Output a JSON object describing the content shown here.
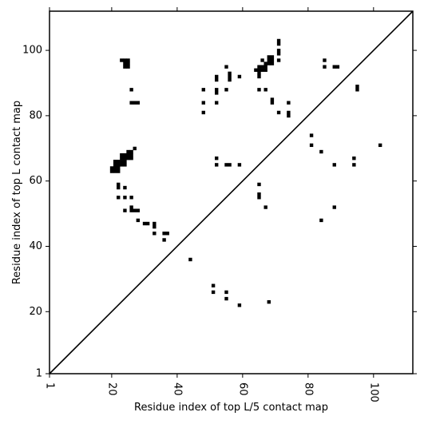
{
  "chart_data": {
    "type": "scatter",
    "title": "",
    "xlabel": "Residue index of top L/5 contact map",
    "ylabel": "Residue index of top L contact map",
    "xlim": [
      1,
      112
    ],
    "ylim": [
      1,
      112
    ],
    "xticks": [
      1,
      20,
      40,
      60,
      80,
      100
    ],
    "yticks": [
      1,
      20,
      40,
      60,
      80,
      100
    ],
    "xtick_labels": [
      "1",
      "20",
      "40",
      "60",
      "80",
      "100"
    ],
    "ytick_labels": [
      "1",
      "20",
      "40",
      "60",
      "80",
      "100"
    ],
    "grid": false,
    "diagonal": [
      [
        1,
        1
      ],
      [
        112,
        112
      ]
    ],
    "marker_color": "#000000",
    "upper_triangle_points": [
      [
        20,
        63
      ],
      [
        21,
        63
      ],
      [
        22,
        63
      ],
      [
        20,
        64
      ],
      [
        21,
        64
      ],
      [
        22,
        64
      ],
      [
        21,
        65
      ],
      [
        22,
        65
      ],
      [
        23,
        65
      ],
      [
        24,
        65
      ],
      [
        21,
        66
      ],
      [
        22,
        66
      ],
      [
        23,
        66
      ],
      [
        24,
        66
      ],
      [
        23,
        67
      ],
      [
        24,
        67
      ],
      [
        25,
        67
      ],
      [
        26,
        67
      ],
      [
        23,
        68
      ],
      [
        24,
        68
      ],
      [
        25,
        68
      ],
      [
        26,
        68
      ],
      [
        25,
        69
      ],
      [
        26,
        69
      ],
      [
        27,
        70
      ],
      [
        22,
        58
      ],
      [
        22,
        59
      ],
      [
        24,
        58
      ],
      [
        22,
        55
      ],
      [
        24,
        55
      ],
      [
        26,
        55
      ],
      [
        24,
        51
      ],
      [
        26,
        52
      ],
      [
        26,
        51
      ],
      [
        27,
        51
      ],
      [
        28,
        51
      ],
      [
        28,
        48
      ],
      [
        30,
        47
      ],
      [
        31,
        47
      ],
      [
        33,
        47
      ],
      [
        33,
        46
      ],
      [
        33,
        44
      ],
      [
        36,
        44
      ],
      [
        37,
        44
      ],
      [
        36,
        42
      ],
      [
        44,
        36
      ],
      [
        23,
        97
      ],
      [
        24,
        97
      ],
      [
        25,
        97
      ],
      [
        24,
        96
      ],
      [
        25,
        96
      ],
      [
        24,
        95
      ],
      [
        25,
        95
      ],
      [
        26,
        88
      ],
      [
        26,
        84
      ],
      [
        27,
        84
      ],
      [
        28,
        84
      ],
      [
        48,
        88
      ],
      [
        48,
        84
      ],
      [
        48,
        81
      ],
      [
        52,
        92
      ],
      [
        52,
        91
      ],
      [
        52,
        88
      ],
      [
        52,
        87
      ],
      [
        52,
        84
      ],
      [
        55,
        95
      ],
      [
        55,
        88
      ],
      [
        56,
        93
      ],
      [
        56,
        92
      ],
      [
        56,
        91
      ],
      [
        59,
        92
      ],
      [
        64,
        94
      ],
      [
        65,
        94
      ],
      [
        65,
        93
      ],
      [
        65,
        92
      ],
      [
        65,
        95
      ],
      [
        66,
        95
      ],
      [
        66,
        94
      ],
      [
        67,
        94
      ],
      [
        67,
        95
      ],
      [
        67,
        96
      ],
      [
        66,
        97
      ],
      [
        68,
        96
      ],
      [
        69,
        96
      ],
      [
        68,
        97
      ],
      [
        69,
        97
      ],
      [
        68,
        98
      ],
      [
        69,
        98
      ],
      [
        71,
        97
      ],
      [
        71,
        99
      ],
      [
        71,
        100
      ],
      [
        71,
        102
      ],
      [
        71,
        103
      ],
      [
        65,
        88
      ],
      [
        67,
        88
      ],
      [
        69,
        85
      ],
      [
        69,
        84
      ],
      [
        71,
        81
      ],
      [
        74,
        84
      ],
      [
        74,
        81
      ],
      [
        74,
        80
      ],
      [
        85,
        97
      ],
      [
        85,
        95
      ],
      [
        88,
        95
      ],
      [
        89,
        95
      ],
      [
        95,
        89
      ],
      [
        95,
        88
      ]
    ],
    "lower_triangle_points": [
      [
        52,
        67
      ],
      [
        52,
        65
      ],
      [
        55,
        65
      ],
      [
        56,
        65
      ],
      [
        59,
        65
      ],
      [
        65,
        59
      ],
      [
        65,
        56
      ],
      [
        65,
        55
      ],
      [
        67,
        52
      ],
      [
        81,
        74
      ],
      [
        81,
        71
      ],
      [
        84,
        69
      ],
      [
        88,
        65
      ],
      [
        88,
        52
      ],
      [
        84,
        48
      ],
      [
        94,
        67
      ],
      [
        94,
        65
      ],
      [
        102,
        71
      ],
      [
        51,
        28
      ],
      [
        51,
        26
      ],
      [
        55,
        26
      ],
      [
        55,
        24
      ],
      [
        59,
        22
      ],
      [
        68,
        23
      ]
    ]
  }
}
